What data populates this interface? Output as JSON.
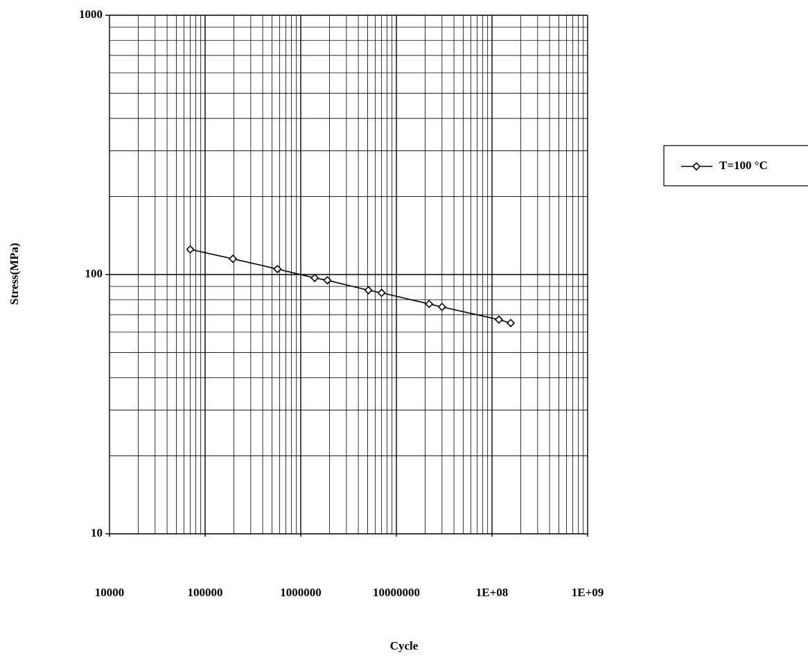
{
  "chart_data": {
    "type": "line",
    "x_label": "Cycle",
    "y_label": "Stress(MPa)",
    "x_scale": "log",
    "y_scale": "log",
    "grid": true,
    "minor_grid": true,
    "legend": "right",
    "xlim": [
      10000,
      1000000000
    ],
    "xticks": [
      10000,
      100000,
      1000000,
      10000000,
      {
        "value": 100000000,
        "label": "1E+08"
      },
      {
        "value": 1000000000,
        "label": "1E+09"
      }
    ],
    "ylim": [
      10,
      1000
    ],
    "yticks": [
      10,
      100,
      1000
    ],
    "series": [
      {
        "name": "T=100 °C",
        "color": "#000000",
        "x": [
          70000,
          195000,
          570000,
          1400000,
          1900000,
          5100000,
          7000000,
          22000000,
          30000000,
          118000000,
          157000000
        ],
        "values": [
          125,
          115,
          105,
          97,
          95,
          87,
          85,
          77,
          75,
          67,
          65
        ]
      }
    ]
  }
}
